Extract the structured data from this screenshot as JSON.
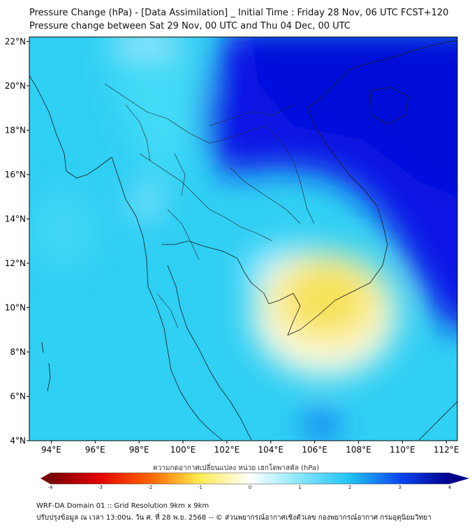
{
  "title": {
    "line1": "Pressure Change (hPa) - [Data Assimilation] _ Initial Time : Friday 28 Nov, 06 UTC FCST+120",
    "line2": "Pressure change between Sat 29 Nov, 00 UTC and Thu 04 Dec, 00 UTC"
  },
  "map": {
    "lon_ticks": [
      "94°E",
      "96°E",
      "98°E",
      "100°E",
      "102°E",
      "104°E",
      "106°E",
      "108°E",
      "110°E",
      "112°E"
    ],
    "lat_ticks": [
      "22°N",
      "20°N",
      "18°N",
      "16°N",
      "14°N",
      "12°N",
      "10°N",
      "8°N",
      "6°N",
      "4°N"
    ],
    "lon_range": [
      93,
      112.5
    ],
    "lat_range": [
      4,
      22.2
    ]
  },
  "colorbar": {
    "caption": "ความกดอากาศเปลี่ยนแปลง หน่วย เฮกโตพาสคัล (hPa)",
    "ticks": [
      "-4",
      "-3",
      "-2",
      "-1",
      "0",
      "1",
      "2",
      "3",
      "4"
    ],
    "range": [
      -4,
      4
    ],
    "colors": [
      "#7a0000",
      "#ff0000",
      "#ff8c00",
      "#ffe94d",
      "#ffffff",
      "#7fe7ff",
      "#21c4f2",
      "#0044ee",
      "#000090"
    ]
  },
  "footer": {
    "line1": "WRF-DA Domain 01 :: Grid Resolution 9km x 9km",
    "line2": "ปรับปรุงข้อมูล ณ เวลา 13:00น. วัน ศ. ที่ 28 พ.ย. 2568 -- © ส่วนพยากรณ์อากาศเชิงตัวเลข กองพยากรณ์อากาศ กรมอุตุนิยมวิทยา"
  }
}
